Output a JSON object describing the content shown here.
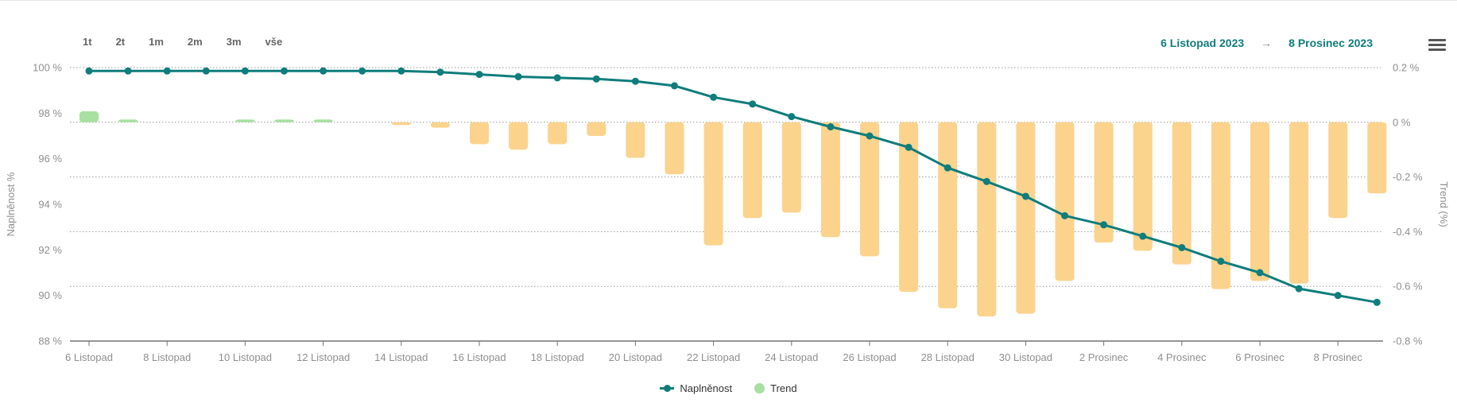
{
  "toolbar": {
    "range_buttons": [
      "1t",
      "2t",
      "1m",
      "2m",
      "3m",
      "vše"
    ],
    "date_from": "6 Listopad 2023",
    "arrow": "→",
    "date_to": "8 Prosinec 2023"
  },
  "legend": {
    "items": [
      {
        "label": "Naplněnost",
        "marker": "line-with-dot",
        "color": "#0f7d7b"
      },
      {
        "label": "Trend",
        "marker": "circle",
        "color": "#a7e0a0"
      }
    ]
  },
  "colors": {
    "line": "#0f7d7b",
    "bar_negative": "#fbd38d",
    "bar_positive": "#a7e0a0",
    "accent_text": "#0f7d7b",
    "gridline": "#9a9a9a",
    "axis_line": "#737373",
    "axis_label": "#8f8f8f"
  },
  "chart_data": {
    "type": "line+bar",
    "x_type": "datetime-daily",
    "dates": [
      "2023-11-06",
      "2023-11-07",
      "2023-11-08",
      "2023-11-09",
      "2023-11-10",
      "2023-11-11",
      "2023-11-12",
      "2023-11-13",
      "2023-11-14",
      "2023-11-15",
      "2023-11-16",
      "2023-11-17",
      "2023-11-18",
      "2023-11-19",
      "2023-11-20",
      "2023-11-21",
      "2023-11-22",
      "2023-11-23",
      "2023-11-24",
      "2023-11-25",
      "2023-11-26",
      "2023-11-27",
      "2023-11-28",
      "2023-11-29",
      "2023-11-30",
      "2023-12-01",
      "2023-12-02",
      "2023-12-03",
      "2023-12-04",
      "2023-12-05",
      "2023-12-06",
      "2023-12-07",
      "2023-12-08",
      "2023-12-09"
    ],
    "series": [
      {
        "name": "Naplněnost",
        "type": "line",
        "axis": "left",
        "color": "#0f7d7b",
        "values": [
          99.85,
          99.85,
          99.85,
          99.85,
          99.85,
          99.85,
          99.85,
          99.85,
          99.85,
          99.8,
          99.7,
          99.6,
          99.55,
          99.5,
          99.4,
          99.2,
          98.7,
          98.4,
          97.85,
          97.4,
          97.0,
          96.5,
          95.6,
          95.0,
          94.35,
          93.5,
          93.1,
          92.6,
          92.1,
          91.5,
          91.0,
          90.3,
          90.0,
          89.7
        ]
      },
      {
        "name": "Trend",
        "type": "bar",
        "axis": "right",
        "color_positive": "#a7e0a0",
        "color_negative": "#fbd38d",
        "values": [
          0.04,
          0.01,
          0,
          0,
          0.01,
          0.01,
          0.01,
          0,
          -0.01,
          -0.02,
          -0.08,
          -0.1,
          -0.08,
          -0.05,
          -0.13,
          -0.19,
          -0.45,
          -0.35,
          -0.33,
          -0.42,
          -0.49,
          -0.62,
          -0.68,
          -0.71,
          -0.7,
          -0.58,
          -0.44,
          -0.47,
          -0.52,
          -0.61,
          -0.58,
          -0.59,
          -0.35,
          -0.26
        ]
      }
    ],
    "left_axis": {
      "title": "Naplněnost %",
      "min": 88,
      "max": 100,
      "ticks": [
        {
          "v": 100,
          "label": "100 %"
        },
        {
          "v": 98,
          "label": "98 %"
        },
        {
          "v": 96,
          "label": "96 %"
        },
        {
          "v": 94,
          "label": "94 %"
        },
        {
          "v": 92,
          "label": "92 %"
        },
        {
          "v": 90,
          "label": "90 %"
        },
        {
          "v": 88,
          "label": "88 %"
        }
      ]
    },
    "right_axis": {
      "title": "Trend (%)",
      "min": -0.8,
      "max": 0.2,
      "ticks": [
        {
          "v": 0.2,
          "label": "0.2 %"
        },
        {
          "v": 0,
          "label": "0 %"
        },
        {
          "v": -0.2,
          "label": "-0.2 %"
        },
        {
          "v": -0.4,
          "label": "-0.4 %"
        },
        {
          "v": -0.6,
          "label": "-0.6 %"
        },
        {
          "v": -0.8,
          "label": "-0.8 %"
        }
      ]
    },
    "x_axis": {
      "ticks": [
        {
          "i": 0,
          "label": "6 Listopad"
        },
        {
          "i": 2,
          "label": "8 Listopad"
        },
        {
          "i": 4,
          "label": "10 Listopad"
        },
        {
          "i": 6,
          "label": "12 Listopad"
        },
        {
          "i": 8,
          "label": "14 Listopad"
        },
        {
          "i": 10,
          "label": "16 Listopad"
        },
        {
          "i": 12,
          "label": "18 Listopad"
        },
        {
          "i": 14,
          "label": "20 Listopad"
        },
        {
          "i": 16,
          "label": "22 Listopad"
        },
        {
          "i": 18,
          "label": "24 Listopad"
        },
        {
          "i": 20,
          "label": "26 Listopad"
        },
        {
          "i": 22,
          "label": "28 Listopad"
        },
        {
          "i": 24,
          "label": "30 Listopad"
        },
        {
          "i": 26,
          "label": "2 Prosinec"
        },
        {
          "i": 28,
          "label": "4 Prosinec"
        },
        {
          "i": 30,
          "label": "6 Prosinec"
        },
        {
          "i": 32,
          "label": "8 Prosinec"
        }
      ]
    },
    "grid": "dotted-horizontal-right-axis",
    "legend_position": "bottom-center"
  }
}
